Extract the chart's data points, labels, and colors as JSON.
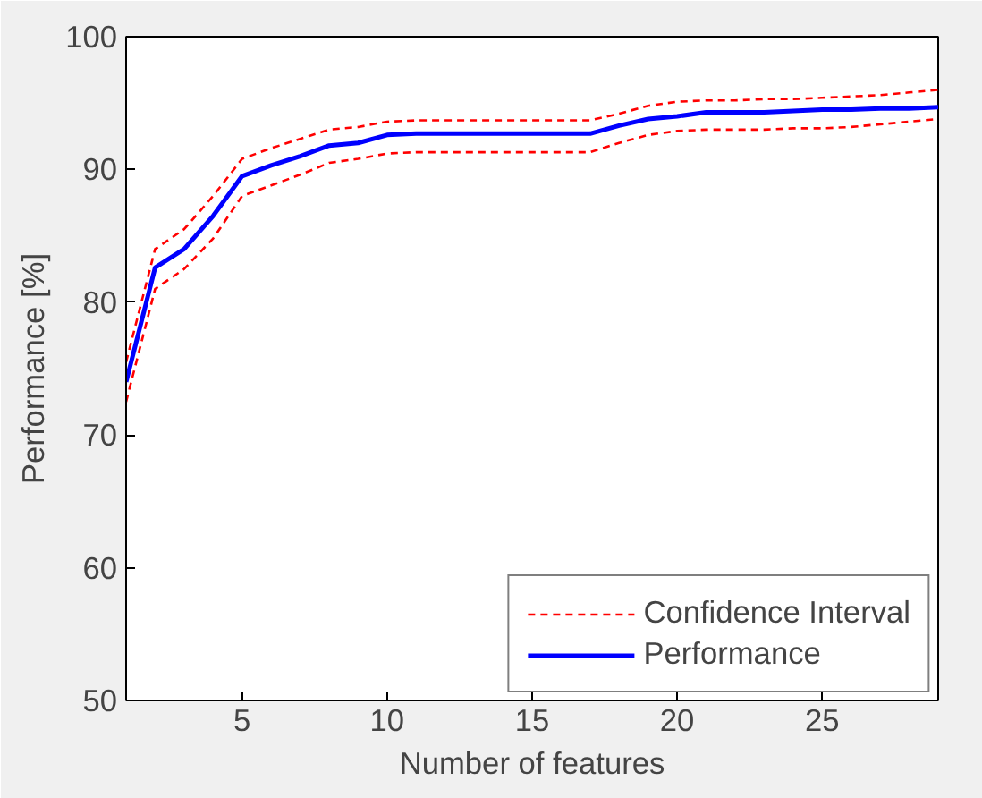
{
  "chart_data": {
    "type": "line",
    "xlabel": "Number of features",
    "ylabel": "Performance [%]",
    "x": [
      1,
      2,
      3,
      4,
      5,
      6,
      7,
      8,
      9,
      10,
      11,
      12,
      13,
      14,
      15,
      16,
      17,
      18,
      19,
      20,
      21,
      22,
      23,
      24,
      25,
      26,
      27,
      28,
      29
    ],
    "xlim": [
      1,
      29
    ],
    "xticks": [
      5,
      10,
      15,
      20,
      25
    ],
    "ylim": [
      50,
      100
    ],
    "yticks": [
      50,
      60,
      70,
      80,
      90,
      100
    ],
    "grid": false,
    "legend": "bottom right",
    "marker": "none",
    "series": [
      {
        "name": "Confidence Interval",
        "color": "#ff0000",
        "line_style": "dashed",
        "values": [
          75.5,
          84,
          85.5,
          88,
          90.8,
          91.6,
          92.3,
          93,
          93.2,
          93.6,
          93.7,
          93.7,
          93.7,
          93.7,
          93.7,
          93.7,
          93.7,
          94.2,
          94.8,
          95.1,
          95.2,
          95.2,
          95.3,
          95.3,
          95.4,
          95.5,
          95.6,
          95.8,
          96
        ]
      },
      {
        "color": "#ff0000",
        "line_style": "dashed",
        "values": [
          72.5,
          81,
          82.5,
          84.8,
          88,
          88.8,
          89.6,
          90.5,
          90.8,
          91.2,
          91.3,
          91.3,
          91.3,
          91.3,
          91.3,
          91.3,
          91.3,
          92,
          92.6,
          92.9,
          93,
          93,
          93,
          93.1,
          93.1,
          93.2,
          93.4,
          93.6,
          93.8
        ]
      },
      {
        "name": "Performance",
        "color": "#0000ff",
        "line_style": "solid",
        "values": [
          74,
          82.6,
          84,
          86.5,
          89.5,
          90.3,
          91,
          91.8,
          92,
          92.6,
          92.7,
          92.7,
          92.7,
          92.7,
          92.7,
          92.7,
          92.7,
          93.3,
          93.8,
          94,
          94.3,
          94.3,
          94.3,
          94.4,
          94.5,
          94.5,
          94.6,
          94.6,
          94.7
        ]
      }
    ]
  }
}
